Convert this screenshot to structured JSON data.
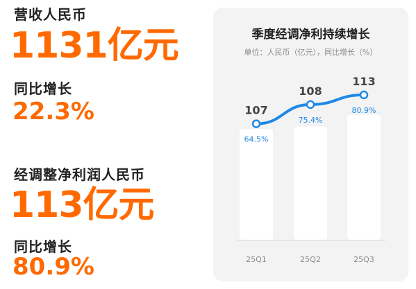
{
  "left": {
    "revenue_label": "营收人民币",
    "revenue_value": "1131亿元",
    "revenue_growth_label": "同比增长",
    "revenue_growth_value": "22.3%",
    "profit_label": "经调整净利润人民币",
    "profit_value": "113亿元",
    "profit_growth_label": "同比增长",
    "profit_growth_value": "80.9%"
  },
  "colors": {
    "accent": "#ff6a00",
    "line": "#1e88e5",
    "panel": "#f3f3f4"
  },
  "chart_data": {
    "type": "bar",
    "title": "季度经调净利持续增长",
    "subtitle": "单位：人民币（亿元），同比增长（%）",
    "categories": [
      "25Q1",
      "25Q2",
      "25Q3"
    ],
    "series": [
      {
        "values": [
          107,
          108,
          113
        ]
      },
      {
        "values": [
          64.5,
          75.4,
          80.9
        ]
      }
    ],
    "value_labels": [
      "107",
      "108",
      "113"
    ],
    "growth_labels": [
      "64.5%",
      "75.4%",
      "80.9%"
    ],
    "grid": false,
    "legend": "none"
  }
}
